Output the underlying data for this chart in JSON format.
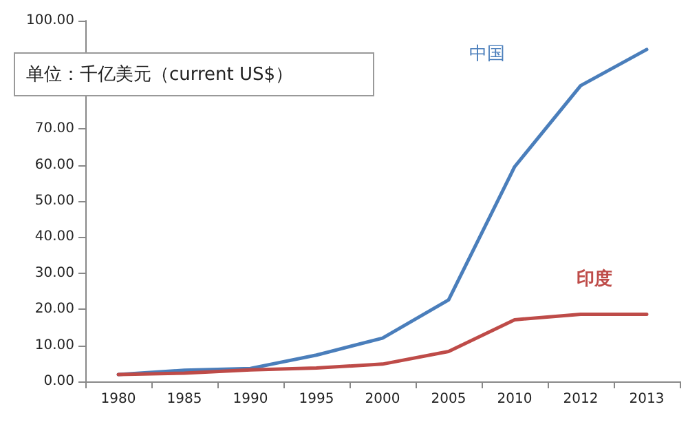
{
  "chart_data": {
    "type": "line",
    "annotations": [
      "单位：千亿美元（current US$）"
    ],
    "categories": [
      "1980",
      "1985",
      "1990",
      "1995",
      "2000",
      "2005",
      "2010",
      "2012",
      "2013"
    ],
    "series": [
      {
        "name": "中国",
        "color": "#4a7ebb",
        "values": [
          1.9,
          3.1,
          3.6,
          7.3,
          12,
          22.6,
          59.5,
          82,
          92
        ]
      },
      {
        "name": "印度",
        "color": "#be4b48",
        "values": [
          1.9,
          2.3,
          3.2,
          3.7,
          4.8,
          8.3,
          17.1,
          18.6,
          18.6
        ]
      }
    ],
    "ylim": [
      0,
      100
    ],
    "yticks": [
      {
        "value": 0,
        "label": "0.00"
      },
      {
        "value": 10,
        "label": "10.00"
      },
      {
        "value": 20,
        "label": "20.00"
      },
      {
        "value": 30,
        "label": "30.00"
      },
      {
        "value": 40,
        "label": "40.00"
      },
      {
        "value": 50,
        "label": "50.00"
      },
      {
        "value": 60,
        "label": "60.00"
      },
      {
        "value": 70,
        "label": "70.00"
      },
      {
        "value": 80,
        "label": null
      },
      {
        "value": 90,
        "label": null
      },
      {
        "value": 100,
        "label": "100.00"
      }
    ],
    "grid": false,
    "legend": false,
    "marker": "none",
    "line_style": "solid"
  }
}
